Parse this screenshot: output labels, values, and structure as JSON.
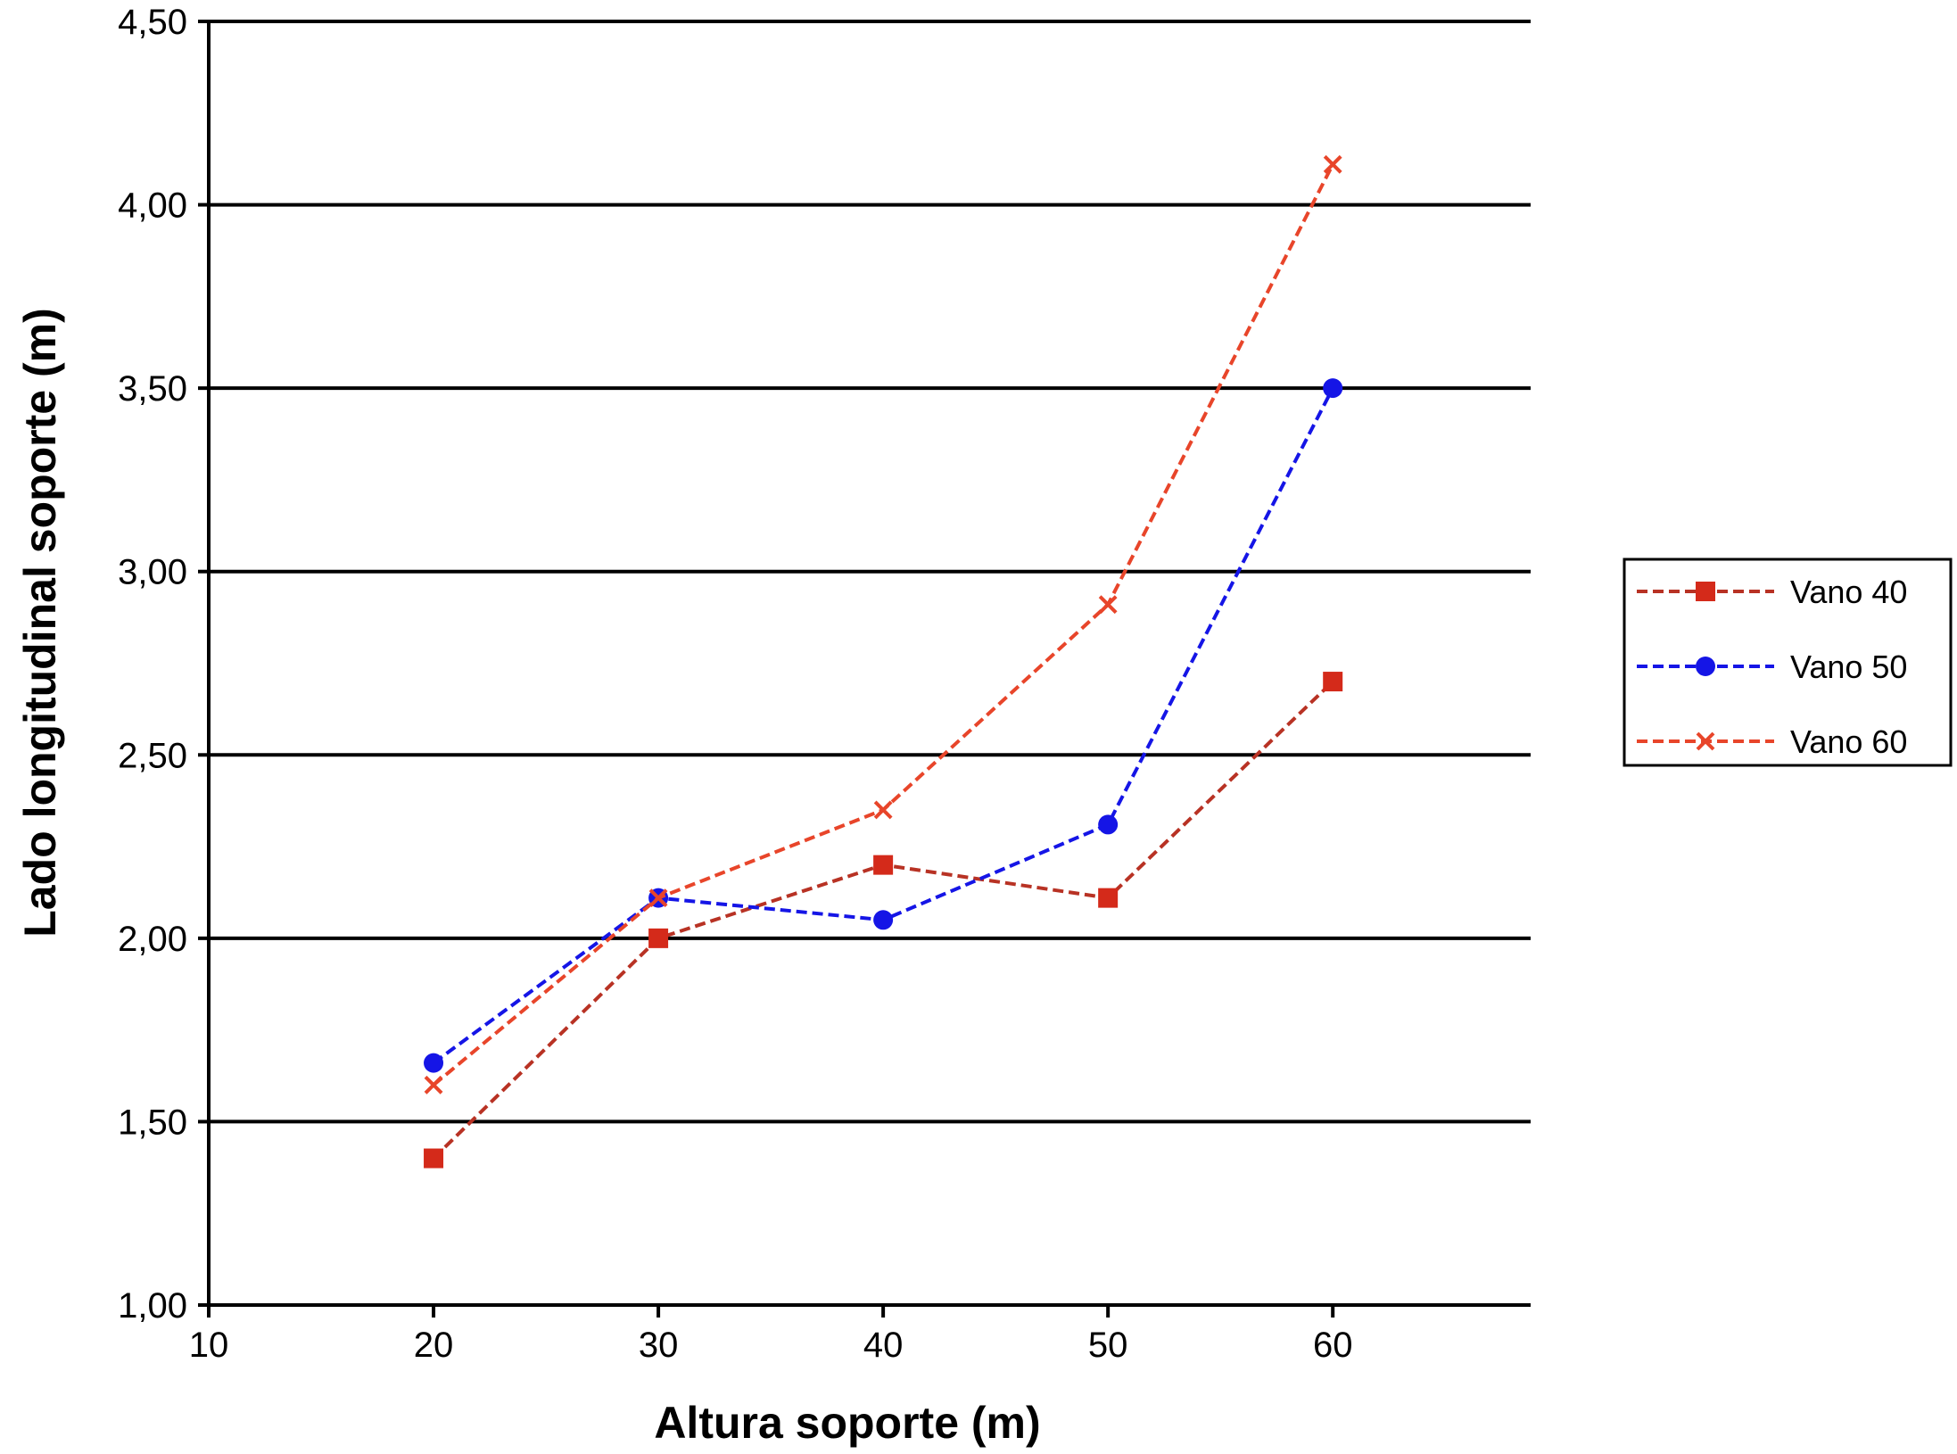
{
  "chart_data": {
    "type": "line",
    "title": "",
    "xlabel": "Altura soporte (m)",
    "ylabel": "Lado longitudinal soporte (m)",
    "xlim": [
      10,
      68.8
    ],
    "ylim": [
      1.0,
      4.5
    ],
    "x_ticks": [
      10,
      20,
      30,
      40,
      50,
      60
    ],
    "x_tick_labels": [
      "10",
      "20",
      "30",
      "40",
      "50",
      "60"
    ],
    "y_ticks": [
      1.0,
      1.5,
      2.0,
      2.5,
      3.0,
      3.5,
      4.0,
      4.5
    ],
    "y_tick_labels": [
      "1,00",
      "1,50",
      "2,00",
      "2,50",
      "3,00",
      "3,50",
      "4,00",
      "4,50"
    ],
    "grid": "horizontal",
    "legend_position": "right",
    "x": [
      20,
      30,
      40,
      50,
      60
    ],
    "series": [
      {
        "name": "Vano 40",
        "values": [
          1.4,
          2.0,
          2.2,
          2.11,
          2.7
        ],
        "color": "#d42a1a",
        "line_color": "#b83224",
        "marker": "square"
      },
      {
        "name": "Vano 50",
        "values": [
          1.66,
          2.11,
          2.05,
          2.31,
          3.5
        ],
        "color": "#1515e6",
        "line_color": "#1515e6",
        "marker": "circle"
      },
      {
        "name": "Vano 60",
        "values": [
          1.6,
          2.11,
          2.35,
          2.91,
          4.11
        ],
        "color": "#e8452a",
        "line_color": "#e8452a",
        "marker": "x"
      }
    ]
  }
}
